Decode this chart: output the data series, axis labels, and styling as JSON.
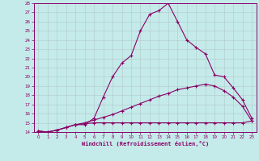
{
  "xlabel": "Windchill (Refroidissement éolien,°C)",
  "bg_color": "#c5eaea",
  "line_color": "#880066",
  "grid_color": "#b0c8c8",
  "xlim": [
    -0.5,
    23.5
  ],
  "ylim": [
    14,
    28
  ],
  "yticks": [
    14,
    15,
    16,
    17,
    18,
    19,
    20,
    21,
    22,
    23,
    24,
    25,
    26,
    27,
    28
  ],
  "xticks": [
    0,
    1,
    2,
    3,
    4,
    5,
    6,
    7,
    8,
    9,
    10,
    11,
    12,
    13,
    14,
    15,
    16,
    17,
    18,
    19,
    20,
    21,
    22,
    23
  ],
  "line1_x": [
    0,
    1,
    2,
    3,
    4,
    5,
    6,
    7,
    8,
    9,
    10,
    11,
    12,
    13,
    14,
    15,
    16,
    17,
    18,
    19,
    20,
    21,
    22,
    23
  ],
  "line1_y": [
    14.1,
    14.0,
    14.2,
    14.5,
    14.8,
    14.8,
    15.5,
    17.8,
    20.0,
    21.5,
    22.3,
    25.0,
    26.8,
    27.2,
    28.0,
    26.0,
    24.0,
    23.2,
    22.5,
    20.2,
    20.0,
    18.8,
    17.5,
    15.5
  ],
  "line2_x": [
    0,
    1,
    2,
    3,
    4,
    5,
    6,
    7,
    8,
    9,
    10,
    11,
    12,
    13,
    14,
    15,
    16,
    17,
    18,
    19,
    20,
    21,
    22,
    23
  ],
  "line2_y": [
    14.1,
    14.0,
    14.2,
    14.5,
    14.8,
    15.0,
    15.3,
    15.6,
    15.9,
    16.3,
    16.7,
    17.1,
    17.5,
    17.9,
    18.2,
    18.6,
    18.8,
    19.0,
    19.2,
    19.0,
    18.5,
    17.8,
    16.8,
    15.2
  ],
  "line3_x": [
    0,
    1,
    2,
    3,
    4,
    5,
    6,
    7,
    8,
    9,
    10,
    11,
    12,
    13,
    14,
    15,
    16,
    17,
    18,
    19,
    20,
    21,
    22,
    23
  ],
  "line3_y": [
    14.1,
    14.0,
    14.2,
    14.5,
    14.8,
    14.9,
    15.0,
    15.0,
    15.0,
    15.0,
    15.0,
    15.0,
    15.0,
    15.0,
    15.0,
    15.0,
    15.0,
    15.0,
    15.0,
    15.0,
    15.0,
    15.0,
    15.0,
    15.2
  ]
}
